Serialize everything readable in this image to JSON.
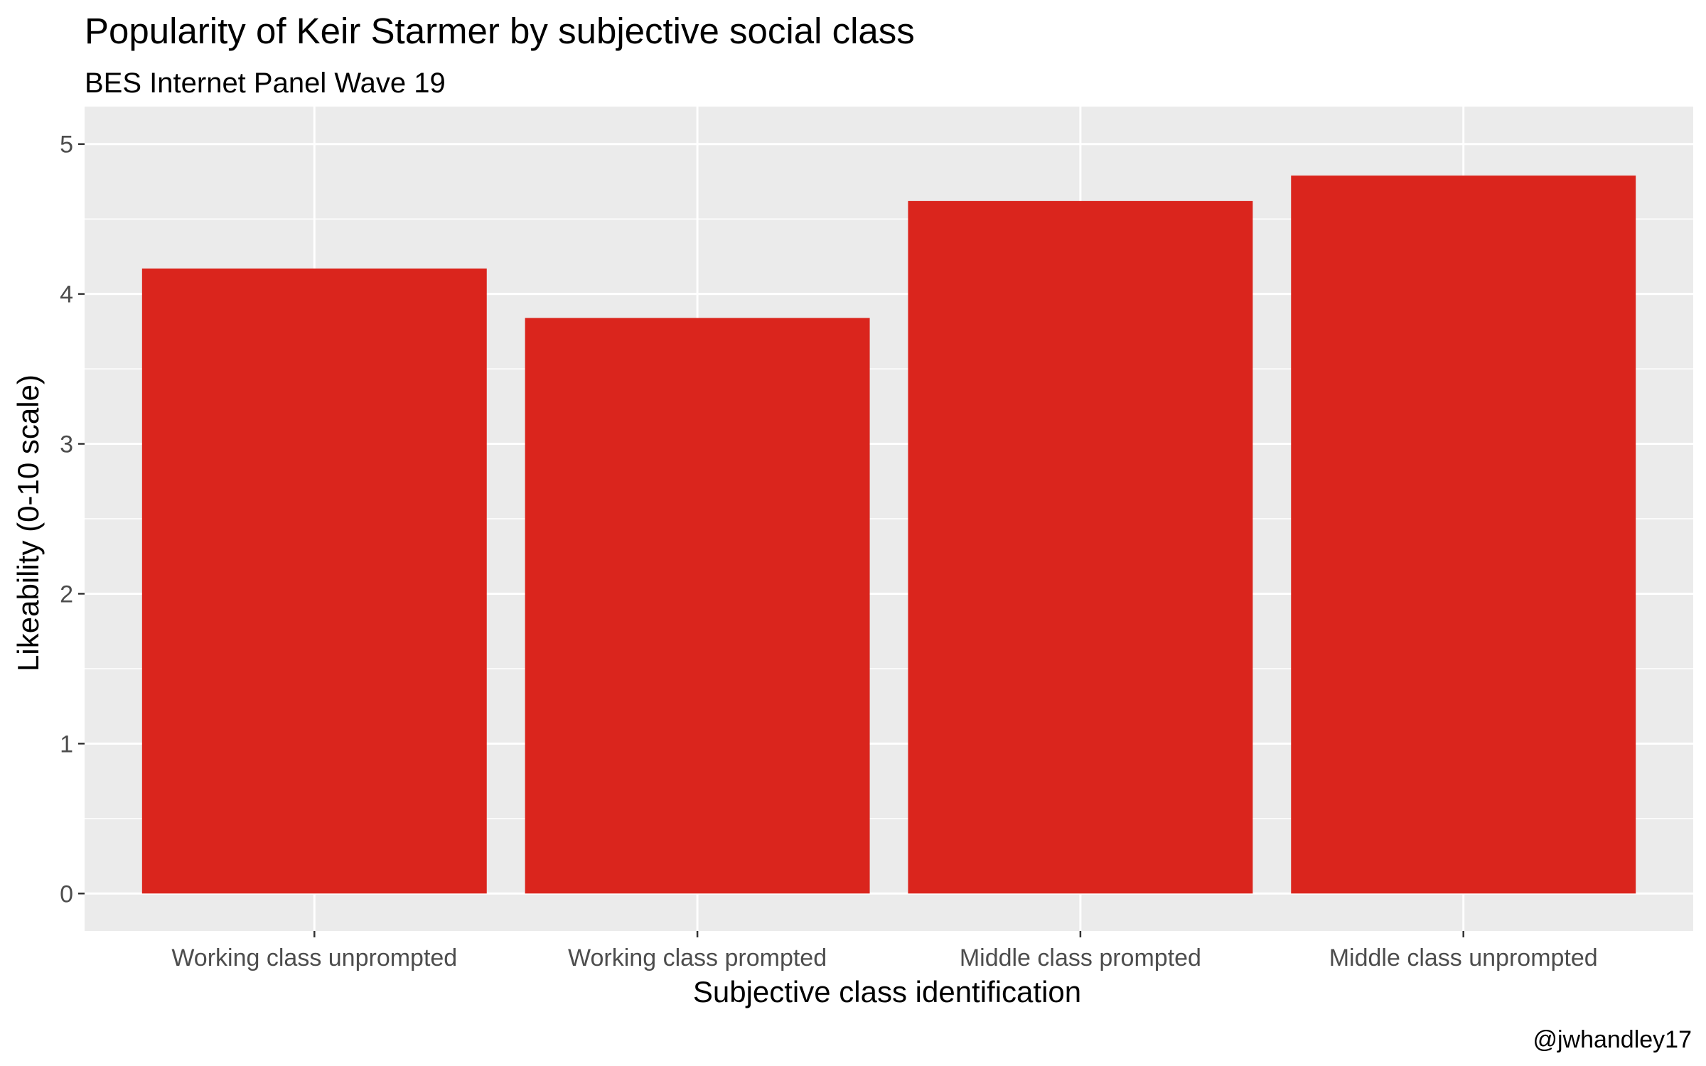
{
  "chart_data": {
    "type": "bar",
    "title": "Popularity of Keir Starmer by subjective social class",
    "subtitle": "BES Internet Panel Wave 19",
    "xlabel": "Subjective class identification",
    "ylabel": "Likeability (0-10 scale)",
    "caption": "@jwhandley17",
    "categories": [
      "Working class unprompted",
      "Working class prompted",
      "Middle class prompted",
      "Middle class unprompted"
    ],
    "values": [
      4.17,
      3.84,
      4.62,
      4.79
    ],
    "ylim": [
      0,
      5
    ],
    "yticks": [
      0,
      1,
      2,
      3,
      4,
      5
    ],
    "grid": true,
    "legend": "none",
    "colors": {
      "bar": "#da251d",
      "panel": "#ebebeb",
      "grid": "#ffffff",
      "tick_text": "#4d4d4d",
      "tick_mark": "#333333"
    }
  }
}
